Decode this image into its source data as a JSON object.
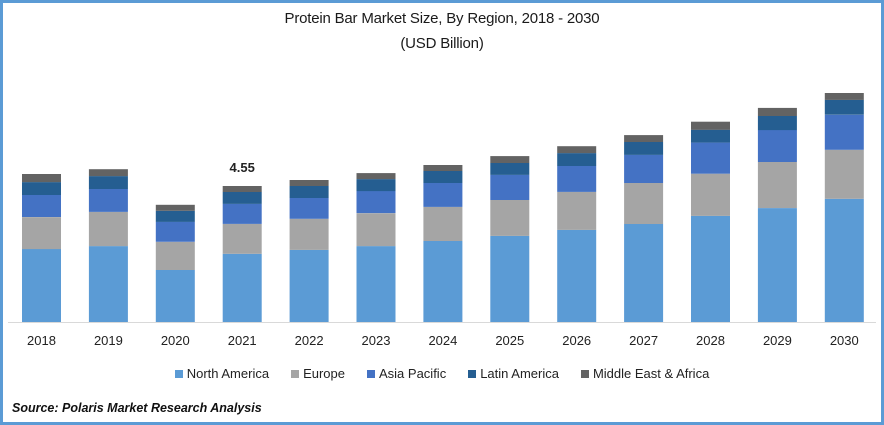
{
  "chart_data": {
    "type": "bar",
    "stacked": true,
    "title": "Protein Bar Market Size, By Region, 2018 - 2030",
    "subtitle": "(USD Billion)",
    "xlabel": "",
    "ylabel": "",
    "ylim": [
      0,
      8
    ],
    "grid": false,
    "legend_position": "bottom",
    "categories": [
      "2018",
      "2019",
      "2020",
      "2021",
      "2022",
      "2023",
      "2024",
      "2025",
      "2026",
      "2027",
      "2028",
      "2029",
      "2030"
    ],
    "series": [
      {
        "name": "North America",
        "color": "#5B9BD5",
        "values": [
          2.44,
          2.54,
          1.74,
          2.28,
          2.41,
          2.54,
          2.71,
          2.88,
          3.08,
          3.28,
          3.55,
          3.81,
          4.12
        ]
      },
      {
        "name": "Europe",
        "color": "#A5A5A5",
        "values": [
          1.07,
          1.14,
          0.94,
          1.0,
          1.04,
          1.1,
          1.14,
          1.2,
          1.27,
          1.37,
          1.41,
          1.54,
          1.64
        ]
      },
      {
        "name": "Asia Pacific",
        "color": "#4472C4",
        "values": [
          0.74,
          0.77,
          0.67,
          0.67,
          0.7,
          0.74,
          0.8,
          0.84,
          0.87,
          0.94,
          1.04,
          1.07,
          1.17
        ]
      },
      {
        "name": "Latin America",
        "color": "#255E91",
        "values": [
          0.43,
          0.43,
          0.37,
          0.4,
          0.4,
          0.4,
          0.4,
          0.4,
          0.43,
          0.43,
          0.43,
          0.47,
          0.5
        ]
      },
      {
        "name": "Middle East & Africa",
        "color": "#636363",
        "values": [
          0.27,
          0.23,
          0.2,
          0.2,
          0.2,
          0.2,
          0.2,
          0.23,
          0.23,
          0.23,
          0.27,
          0.27,
          0.23
        ]
      }
    ],
    "annotations": [
      {
        "category": "2021",
        "text": "4.55"
      }
    ]
  },
  "source": "Source: Polaris  Market Research Analysis",
  "colors": {
    "border": "#5B9BD5",
    "axis": "#D9D9D9"
  }
}
